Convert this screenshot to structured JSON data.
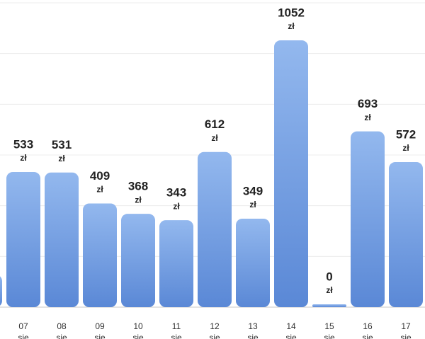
{
  "chart_data": {
    "type": "bar",
    "categories": [
      null,
      {
        "day": "07",
        "month": "sie"
      },
      {
        "day": "08",
        "month": "sie"
      },
      {
        "day": "09",
        "month": "sie"
      },
      {
        "day": "10",
        "month": "sie"
      },
      {
        "day": "11",
        "month": "sie"
      },
      {
        "day": "12",
        "month": "sie"
      },
      {
        "day": "13",
        "month": "sie"
      },
      {
        "day": "14",
        "month": "sie"
      },
      {
        "day": "15",
        "month": "sie"
      },
      {
        "day": "16",
        "month": "sie"
      },
      {
        "day": "17",
        "month": "sie"
      }
    ],
    "values": [
      128,
      533,
      531,
      409,
      368,
      343,
      612,
      349,
      1052,
      0,
      693,
      572
    ],
    "unit": "zł",
    "gradient": [
      "#93b8ee",
      "#5a88d6"
    ],
    "ylim": [
      0,
      1200
    ],
    "yticks": [
      0,
      200,
      400,
      600,
      800,
      1000,
      1200
    ],
    "grid": true
  }
}
